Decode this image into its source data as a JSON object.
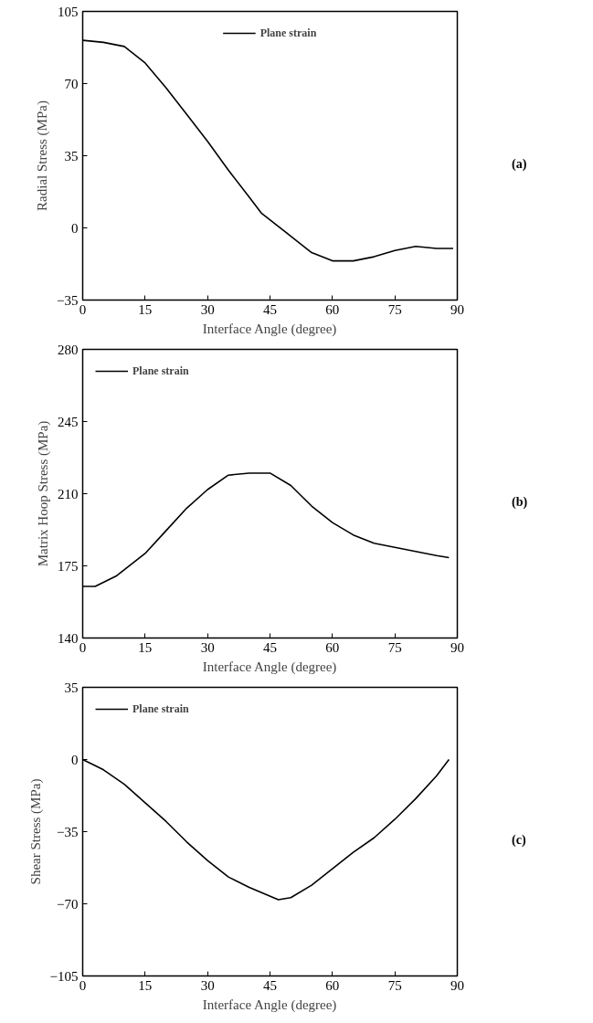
{
  "chart_data": [
    {
      "type": "line",
      "xlabel": "Interface Angle (degree)",
      "ylabel": "Radial Stress (MPa)",
      "annotations": [
        "(a)"
      ],
      "xlim": [
        0,
        90
      ],
      "xticks": [
        0,
        15,
        30,
        45,
        60,
        75,
        90
      ],
      "ylim": [
        -35,
        105
      ],
      "yticks": [
        -35,
        0,
        35,
        70,
        105
      ],
      "legend": "top center",
      "grid": false,
      "line_style": "solid",
      "series": [
        {
          "name": "Plane strain",
          "color": "#000000",
          "x": [
            0,
            5,
            10,
            15,
            20,
            25,
            30,
            35,
            40,
            43,
            50,
            55,
            60,
            65,
            70,
            75,
            80,
            85,
            89
          ],
          "values": [
            91,
            90,
            88,
            80,
            68,
            55,
            42,
            28,
            15,
            7,
            -4,
            -12,
            -16,
            -16,
            -14,
            -11,
            -9,
            -10,
            -10
          ]
        }
      ]
    },
    {
      "type": "line",
      "xlabel": "Interface Angle (degree)",
      "ylabel": "Matrix Hoop Stress (MPa)",
      "annotations": [
        "(b)"
      ],
      "xlim": [
        0,
        90
      ],
      "xticks": [
        0,
        15,
        30,
        45,
        60,
        75,
        90
      ],
      "ylim": [
        140,
        280
      ],
      "yticks": [
        140,
        175,
        210,
        245,
        280
      ],
      "legend": "top left",
      "grid": false,
      "line_style": "solid",
      "series": [
        {
          "name": "Plane strain",
          "color": "#000000",
          "x": [
            0,
            3,
            8,
            15,
            20,
            25,
            30,
            35,
            40,
            45,
            50,
            55,
            60,
            65,
            70,
            75,
            80,
            85,
            88
          ],
          "values": [
            165,
            165,
            170,
            181,
            192,
            203,
            212,
            219,
            220,
            220,
            214,
            204,
            196,
            190,
            186,
            184,
            182,
            180,
            179
          ]
        }
      ]
    },
    {
      "type": "line",
      "xlabel": "Interface Angle (degree)",
      "ylabel": "Shear Stress (MPa)",
      "annotations": [
        "(c)"
      ],
      "xlim": [
        0,
        90
      ],
      "xticks": [
        0,
        15,
        30,
        45,
        60,
        75,
        90
      ],
      "ylim": [
        -105,
        35
      ],
      "yticks": [
        -105,
        -70,
        -35,
        0,
        35
      ],
      "legend": "top left",
      "grid": false,
      "line_style": "solid",
      "series": [
        {
          "name": "Plane strain",
          "color": "#000000",
          "x": [
            0,
            5,
            10,
            15,
            20,
            25,
            30,
            35,
            40,
            47,
            50,
            55,
            60,
            65,
            70,
            75,
            80,
            85,
            88
          ],
          "values": [
            0,
            -5,
            -12,
            -21,
            -30,
            -40,
            -49,
            -57,
            -62,
            -68,
            -67,
            -61,
            -53,
            -45,
            -38,
            -29,
            -19,
            -8,
            0
          ]
        }
      ]
    }
  ]
}
